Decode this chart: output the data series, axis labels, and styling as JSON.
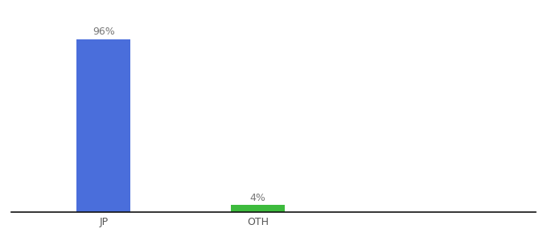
{
  "categories": [
    "JP",
    "OTH"
  ],
  "values": [
    96,
    4
  ],
  "bar_colors": [
    "#4a6edb",
    "#3dbb3d"
  ],
  "label_texts": [
    "96%",
    "4%"
  ],
  "background_color": "#ffffff",
  "ylim": [
    0,
    107
  ],
  "bar_width": 0.35,
  "figsize": [
    6.8,
    3.0
  ],
  "dpi": 100,
  "tick_fontsize": 9,
  "label_fontsize": 9,
  "spine_color": "#111111",
  "x_positions": [
    1,
    2
  ],
  "xlim": [
    0.4,
    3.8
  ]
}
